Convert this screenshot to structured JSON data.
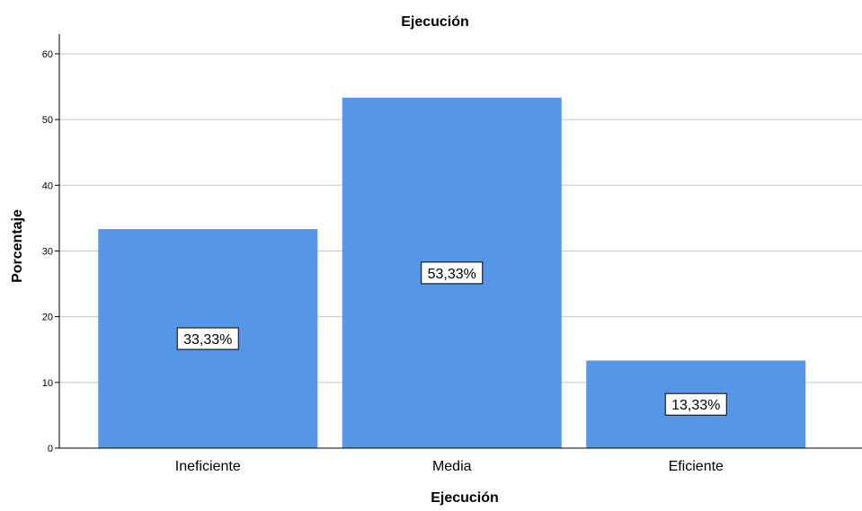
{
  "chart_data": {
    "type": "bar",
    "title": "Ejecución",
    "xlabel": "Ejecución",
    "ylabel": "Porcentaje",
    "categories": [
      "Ineficiente",
      "Media",
      "Eficiente"
    ],
    "values": [
      33.33,
      53.33,
      13.33
    ],
    "data_labels": [
      "33,33%",
      "53,33%",
      "13,33%"
    ],
    "ylim": [
      0,
      63
    ],
    "yticks": [
      0,
      10,
      20,
      30,
      40,
      50,
      60
    ],
    "grid": true,
    "legend": "none",
    "colors": {
      "bar": "#5596e6",
      "grid": "#c8c8c8",
      "axis": "#000000",
      "label_box_fill": "#ffffff",
      "label_box_stroke": "#000000"
    }
  }
}
